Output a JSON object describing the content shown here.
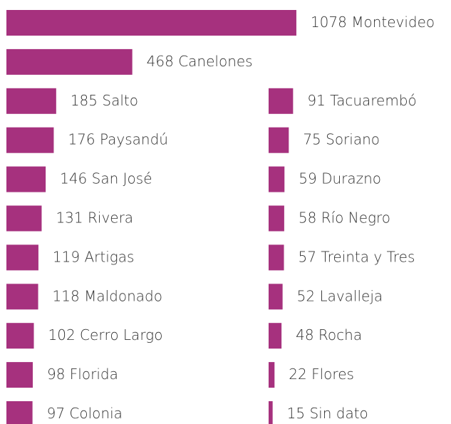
{
  "chart_data": {
    "type": "bar",
    "orientation": "horizontal",
    "color": "#a6317e",
    "categories": [
      "Montevideo",
      "Canelones",
      "Salto",
      "Paysandú",
      "San José",
      "Rivera",
      "Artigas",
      "Maldonado",
      "Cerro Largo",
      "Florida",
      "Colonia",
      "Tacuarembó",
      "Soriano",
      "Durazno",
      "Río Negro",
      "Treinta y Tres",
      "Lavalleja",
      "Rocha",
      "Flores",
      "Sin dato"
    ],
    "values": [
      1078,
      468,
      185,
      176,
      146,
      131,
      119,
      118,
      102,
      98,
      97,
      91,
      75,
      59,
      58,
      57,
      52,
      48,
      22,
      15
    ]
  }
}
